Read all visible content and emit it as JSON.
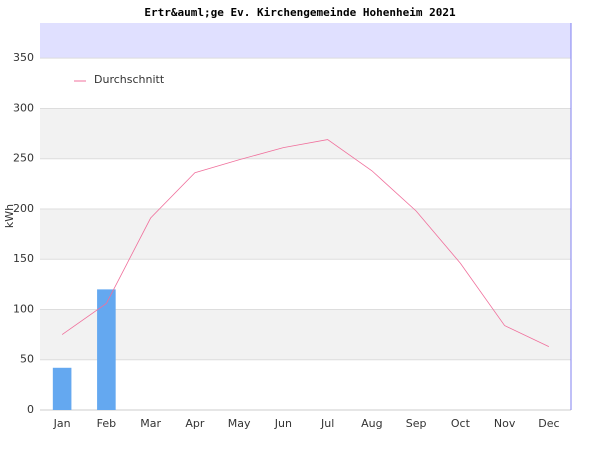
{
  "chart_data": {
    "type": "bar",
    "title": "Ertr&auml;ge Ev. Kirchengemeinde Hohenheim 2021",
    "y_label": "kWh",
    "categories": [
      "Jan",
      "Feb",
      "Mar",
      "Apr",
      "May",
      "Jun",
      "Jul",
      "Aug",
      "Sep",
      "Oct",
      "Nov",
      "Dec"
    ],
    "values": [
      42,
      120,
      null,
      null,
      null,
      null,
      null,
      null,
      null,
      null,
      null,
      null
    ],
    "color": "#64a8f0",
    "series": [
      {
        "name": "Durchschnitt",
        "type": "line",
        "color": "#f0709c",
        "values": [
          75,
          106,
          191,
          236,
          249,
          261,
          269,
          238,
          198,
          146,
          84,
          63
        ]
      }
    ],
    "ylim": [
      0,
      385
    ],
    "yticks": [
      0,
      50,
      100,
      150,
      200,
      250,
      300,
      350
    ],
    "grid": true,
    "stripe_color": "#f2f2f2",
    "top_band_color": "#e0e0ff",
    "legend": "top-left"
  }
}
